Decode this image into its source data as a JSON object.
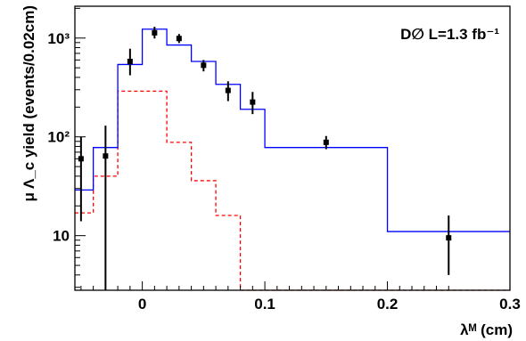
{
  "chart_data": {
    "type": "line",
    "annotation": "D∅ L=1.3 fb⁻¹",
    "xlabel": "λᴹ (cm)",
    "ylabel": "μ Λ_c yield (events/0.02cm)",
    "xlim": [
      -0.055,
      0.3
    ],
    "ylim": [
      2.8,
      2100
    ],
    "yscale": "log",
    "grid": false,
    "x_tick_labels": [
      "0",
      "0.1",
      "0.2",
      "0.3"
    ],
    "x_ticks": [
      0,
      0.1,
      0.2,
      0.3
    ],
    "y_tick_labels": [
      "10",
      "10²",
      "10³"
    ],
    "y_ticks": [
      10,
      100,
      1000
    ],
    "series": [
      {
        "kind": "histogram",
        "color": "#0000ff",
        "style": "solid",
        "bins": [
          {
            "x0": -0.055,
            "x1": -0.04,
            "y": 29
          },
          {
            "x0": -0.04,
            "x1": -0.02,
            "y": 78
          },
          {
            "x0": -0.02,
            "x1": 0.0,
            "y": 540
          },
          {
            "x0": 0.0,
            "x1": 0.02,
            "y": 1230
          },
          {
            "x0": 0.02,
            "x1": 0.04,
            "y": 850
          },
          {
            "x0": 0.04,
            "x1": 0.06,
            "y": 580
          },
          {
            "x0": 0.06,
            "x1": 0.08,
            "y": 340
          },
          {
            "x0": 0.08,
            "x1": 0.1,
            "y": 190
          },
          {
            "x0": 0.1,
            "x1": 0.2,
            "y": 78
          },
          {
            "x0": 0.2,
            "x1": 0.3,
            "y": 11
          }
        ]
      },
      {
        "kind": "histogram",
        "color": "#ff0000",
        "style": "dashed",
        "bins": [
          {
            "x0": -0.055,
            "x1": -0.04,
            "y": 17
          },
          {
            "x0": -0.04,
            "x1": -0.02,
            "y": 40
          },
          {
            "x0": -0.02,
            "x1": 0.0,
            "y": 290
          },
          {
            "x0": 0.0,
            "x1": 0.02,
            "y": 290
          },
          {
            "x0": 0.02,
            "x1": 0.04,
            "y": 88
          },
          {
            "x0": 0.04,
            "x1": 0.06,
            "y": 36
          },
          {
            "x0": 0.06,
            "x1": 0.08,
            "y": 16
          },
          {
            "x0": 0.08,
            "x1": 0.3,
            "y": 2.8
          }
        ]
      },
      {
        "kind": "points",
        "color": "#000000",
        "points": [
          {
            "x": -0.05,
            "y": 60,
            "ylo": 14,
            "yhi": 100
          },
          {
            "x": -0.03,
            "y": 64,
            "ylo": 1,
            "yhi": 130
          },
          {
            "x": -0.01,
            "y": 580,
            "ylo": 420,
            "yhi": 780
          },
          {
            "x": 0.01,
            "y": 1130,
            "ylo": 990,
            "yhi": 1300
          },
          {
            "x": 0.03,
            "y": 990,
            "ylo": 890,
            "yhi": 1100
          },
          {
            "x": 0.05,
            "y": 530,
            "ylo": 460,
            "yhi": 600
          },
          {
            "x": 0.07,
            "y": 295,
            "ylo": 230,
            "yhi": 365
          },
          {
            "x": 0.09,
            "y": 225,
            "ylo": 170,
            "yhi": 285
          },
          {
            "x": 0.15,
            "y": 88,
            "ylo": 75,
            "yhi": 102
          },
          {
            "x": 0.25,
            "y": 9.5,
            "ylo": 4,
            "yhi": 16
          }
        ]
      }
    ]
  }
}
